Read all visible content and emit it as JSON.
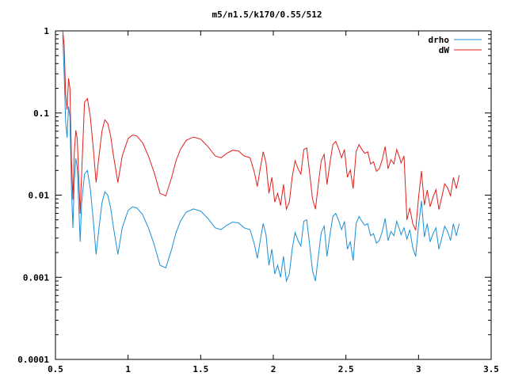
{
  "chart_data": {
    "type": "line",
    "title": "m5/n1.5/k170/0.55/512",
    "xlabel": "",
    "ylabel": "",
    "xlim": [
      0.5,
      3.5
    ],
    "ylim": [
      0.0001,
      1
    ],
    "yscale": "log",
    "grid": false,
    "legend_position": "top-right",
    "x_ticks": [
      {
        "value": 0.5,
        "label": "0.5"
      },
      {
        "value": 1.0,
        "label": "1"
      },
      {
        "value": 1.5,
        "label": "1.5"
      },
      {
        "value": 2.0,
        "label": "2"
      },
      {
        "value": 2.5,
        "label": "2.5"
      },
      {
        "value": 3.0,
        "label": "3"
      },
      {
        "value": 3.5,
        "label": "3.5"
      }
    ],
    "y_ticks": [
      {
        "value": 1,
        "label": "1"
      },
      {
        "value": 0.1,
        "label": "0.1"
      },
      {
        "value": 0.01,
        "label": "0.01"
      },
      {
        "value": 0.001,
        "label": "0.001"
      },
      {
        "value": 0.0001,
        "label": "0.0001"
      }
    ],
    "series": [
      {
        "name": "drho",
        "color": "#1a8fd6",
        "x": [
          0.55,
          0.56,
          0.57,
          0.58,
          0.59,
          0.6,
          0.61,
          0.62,
          0.63,
          0.64,
          0.65,
          0.66,
          0.67,
          0.68,
          0.7,
          0.72,
          0.74,
          0.76,
          0.78,
          0.8,
          0.82,
          0.84,
          0.86,
          0.88,
          0.9,
          0.93,
          0.96,
          1.0,
          1.03,
          1.06,
          1.1,
          1.14,
          1.18,
          1.22,
          1.26,
          1.3,
          1.33,
          1.36,
          1.4,
          1.45,
          1.5,
          1.55,
          1.6,
          1.64,
          1.68,
          1.72,
          1.76,
          1.8,
          1.84,
          1.87,
          1.89,
          1.91,
          1.93,
          1.95,
          1.97,
          1.99,
          2.01,
          2.03,
          2.05,
          2.07,
          2.09,
          2.11,
          2.13,
          2.15,
          2.17,
          2.19,
          2.21,
          2.23,
          2.25,
          2.27,
          2.29,
          2.31,
          2.33,
          2.35,
          2.37,
          2.39,
          2.41,
          2.43,
          2.45,
          2.47,
          2.49,
          2.51,
          2.53,
          2.55,
          2.57,
          2.59,
          2.61,
          2.63,
          2.65,
          2.67,
          2.69,
          2.71,
          2.73,
          2.75,
          2.77,
          2.79,
          2.81,
          2.83,
          2.85,
          2.87,
          2.88,
          2.9,
          2.92,
          2.94,
          2.96,
          2.98,
          3.0,
          3.02,
          3.04,
          3.06,
          3.08,
          3.1,
          3.12,
          3.14,
          3.16,
          3.18,
          3.2,
          3.22,
          3.24,
          3.26,
          3.28
        ],
        "values": [
          0.9,
          0.3,
          0.08,
          0.05,
          0.12,
          0.09,
          0.012,
          0.004,
          0.015,
          0.028,
          0.022,
          0.008,
          0.0027,
          0.008,
          0.018,
          0.02,
          0.012,
          0.005,
          0.0019,
          0.004,
          0.008,
          0.011,
          0.01,
          0.007,
          0.004,
          0.0019,
          0.004,
          0.0065,
          0.0072,
          0.007,
          0.0058,
          0.004,
          0.0025,
          0.0014,
          0.0013,
          0.0022,
          0.0035,
          0.0048,
          0.0062,
          0.0068,
          0.0064,
          0.0052,
          0.004,
          0.0038,
          0.0043,
          0.0047,
          0.0046,
          0.004,
          0.0038,
          0.0025,
          0.0017,
          0.0028,
          0.0045,
          0.0033,
          0.0014,
          0.0022,
          0.0011,
          0.0014,
          0.001,
          0.0018,
          0.0009,
          0.0011,
          0.0022,
          0.0035,
          0.0028,
          0.0024,
          0.0048,
          0.005,
          0.0025,
          0.0012,
          0.0009,
          0.0018,
          0.0035,
          0.0042,
          0.0018,
          0.0033,
          0.0055,
          0.006,
          0.0049,
          0.0038,
          0.0048,
          0.0022,
          0.0027,
          0.0016,
          0.0045,
          0.0055,
          0.0048,
          0.0043,
          0.0045,
          0.0032,
          0.0034,
          0.0026,
          0.0028,
          0.0036,
          0.0052,
          0.0028,
          0.0036,
          0.0032,
          0.0048,
          0.0038,
          0.0033,
          0.004,
          0.0029,
          0.0038,
          0.0023,
          0.0018,
          0.0042,
          0.0085,
          0.0031,
          0.0045,
          0.0027,
          0.0034,
          0.004,
          0.0022,
          0.003,
          0.0042,
          0.0036,
          0.0028,
          0.0045,
          0.0032,
          0.0045
        ],
        "values_note": ""
      },
      {
        "name": "dW",
        "color": "#e0201b",
        "x": [],
        "values": []
      }
    ]
  }
}
